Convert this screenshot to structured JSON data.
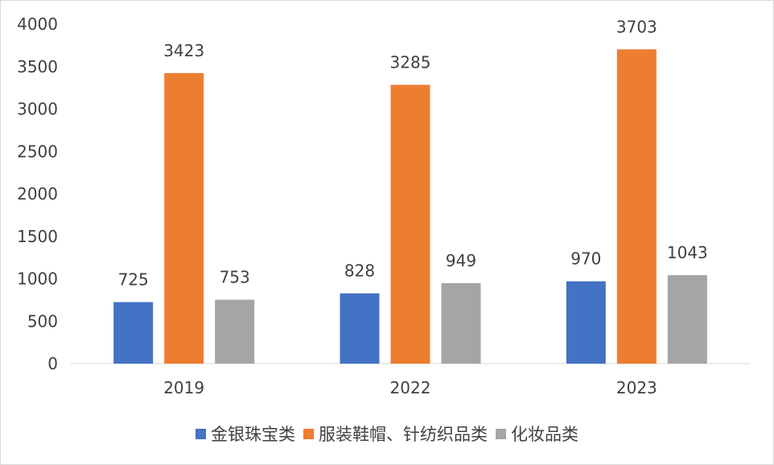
{
  "chart_data": {
    "type": "bar",
    "categories": [
      "2019",
      "2022",
      "2023"
    ],
    "series": [
      {
        "name": "金银珠宝类",
        "color": "#4472c4",
        "values": [
          725,
          828,
          970
        ]
      },
      {
        "name": "服装鞋帽、针纺织品类",
        "color": "#ed7d31",
        "values": [
          3423,
          3285,
          3703
        ]
      },
      {
        "name": "化妆品类",
        "color": "#a5a5a5",
        "values": [
          753,
          949,
          1043
        ]
      }
    ],
    "ylim": [
      0,
      4000
    ],
    "yticks": [
      0,
      500,
      1000,
      1500,
      2000,
      2500,
      3000,
      3500,
      4000
    ],
    "grid": false,
    "legend_position": "bottom",
    "data_labels": true
  }
}
